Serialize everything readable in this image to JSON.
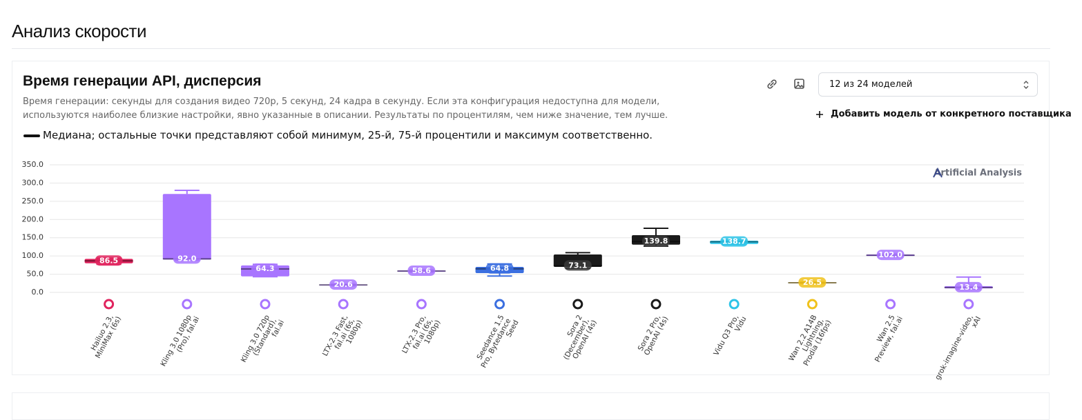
{
  "page": {
    "heading": "Анализ скорости"
  },
  "card": {
    "title": "Время генерации API, дисперсия",
    "description": "Время генерации: секунды для создания видео 720p, 5 секунд, 24 кадра в секунду. Если эта конфигурация недоступна для модели, используются наиболее близкие настройки, явно указанные в описании. Результаты по процентилям, чем ниже значение, тем лучше.",
    "legend_note": "Медиана; остальные точки представляют собой минимум, 25-й, 75-й процентили и максимум соответственно.",
    "model_select": "12 из 24 моделей",
    "add_model": "Добавить модель от конкретного поставщика"
  },
  "chart_data": {
    "type": "box",
    "watermark": "Artificial Analysis",
    "categories": [
      "Hailuo 2.3, MiniMax (6s)",
      "Kling 3.0 1080p (Pro), fal.ai",
      "Kling 3.0 720p (Standard), fal.ai",
      "LTX-2.3 Fast, fal.ai (6s, 1080p)",
      "LTX-2.3 Pro, fal.ai (6s, 1080p)",
      "Seedance 1.5 Pro, Bytedance Seed",
      "Sora 2 (December), OpenAI (4s)",
      "Sora 2 Pro, OpenAI (4s)",
      "Vidu Q3 Pro, Vidu",
      "Wan 2.2 A14B Lightning, Prodia (16fps)",
      "Wan 2.5 Preview, fal.ai",
      "grok-imagine-video, xAI"
    ],
    "values": [
      86.5,
      92.0,
      64.3,
      20.6,
      58.6,
      64.8,
      73.1,
      139.8,
      138.7,
      26.5,
      102.0,
      13.4
    ],
    "value_labels": [
      "86.5",
      "92.0",
      "64.3",
      "20.6",
      "58.6",
      "64.8",
      "73.1",
      "139.8",
      "138.7",
      "26.5",
      "102.0",
      "13.4"
    ],
    "min": [
      77,
      88,
      43,
      18,
      55,
      45,
      66,
      127,
      131,
      24,
      98,
      9
    ],
    "q1": [
      80,
      90,
      44,
      19.5,
      57,
      53,
      70,
      131,
      133,
      25.5,
      100,
      11
    ],
    "q3": [
      92,
      270,
      74,
      21.5,
      60,
      70,
      104,
      157,
      142,
      27.5,
      104,
      17
    ],
    "max": [
      94,
      280,
      77,
      23,
      62,
      78,
      109,
      176,
      144,
      29,
      106,
      42
    ],
    "colors": [
      "#e0245e",
      "#a875ff",
      "#a875ff",
      "#a875ff",
      "#a875ff",
      "#3b6fe0",
      "#1a1a1a",
      "#1a1a1a",
      "#2ec4e8",
      "#f0c21c",
      "#a875ff",
      "#a875ff"
    ],
    "ylim": [
      0,
      350
    ],
    "yticks": [
      {
        "value": 0,
        "label": "0.0"
      },
      {
        "value": 50,
        "label": "50.0"
      },
      {
        "value": 100,
        "label": "100.0"
      },
      {
        "value": 150,
        "label": "150.0"
      },
      {
        "value": 200,
        "label": "200.0"
      },
      {
        "value": 250,
        "label": "250.0"
      },
      {
        "value": 300,
        "label": "300.0"
      },
      {
        "value": 350,
        "label": "350.0"
      }
    ],
    "grid": true
  }
}
